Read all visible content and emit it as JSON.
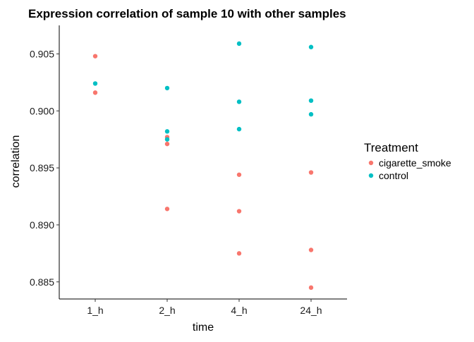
{
  "chart_data": {
    "type": "scatter",
    "title": "Expression correlation of sample 10 with other samples",
    "xlabel": "time",
    "ylabel": "correlation",
    "categories": [
      "1_h",
      "2_h",
      "4_h",
      "24_h"
    ],
    "ylim": [
      0.8835,
      0.9075
    ],
    "yticks": [
      0.885,
      0.89,
      0.895,
      0.9,
      0.905
    ],
    "ytick_labels": [
      "0.885",
      "0.890",
      "0.895",
      "0.900",
      "0.905"
    ],
    "grid": false,
    "legend": {
      "title": "Treatment",
      "position": "right"
    },
    "series": [
      {
        "name": "cigarette_smoke",
        "color": "#F8766D",
        "points": [
          {
            "x": "1_h",
            "y": 0.9048
          },
          {
            "x": "1_h",
            "y": 0.9016
          },
          {
            "x": "2_h",
            "y": 0.8977
          },
          {
            "x": "2_h",
            "y": 0.8971
          },
          {
            "x": "2_h",
            "y": 0.8914
          },
          {
            "x": "4_h",
            "y": 0.8944
          },
          {
            "x": "4_h",
            "y": 0.8912
          },
          {
            "x": "4_h",
            "y": 0.8875
          },
          {
            "x": "24_h",
            "y": 0.8946
          },
          {
            "x": "24_h",
            "y": 0.8878
          },
          {
            "x": "24_h",
            "y": 0.8845
          }
        ]
      },
      {
        "name": "control",
        "color": "#00BFC4",
        "points": [
          {
            "x": "1_h",
            "y": 0.9024
          },
          {
            "x": "2_h",
            "y": 0.902
          },
          {
            "x": "2_h",
            "y": 0.8982
          },
          {
            "x": "2_h",
            "y": 0.8975
          },
          {
            "x": "4_h",
            "y": 0.9059
          },
          {
            "x": "4_h",
            "y": 0.9008
          },
          {
            "x": "4_h",
            "y": 0.8984
          },
          {
            "x": "24_h",
            "y": 0.9056
          },
          {
            "x": "24_h",
            "y": 0.9009
          },
          {
            "x": "24_h",
            "y": 0.8997
          }
        ]
      }
    ]
  }
}
